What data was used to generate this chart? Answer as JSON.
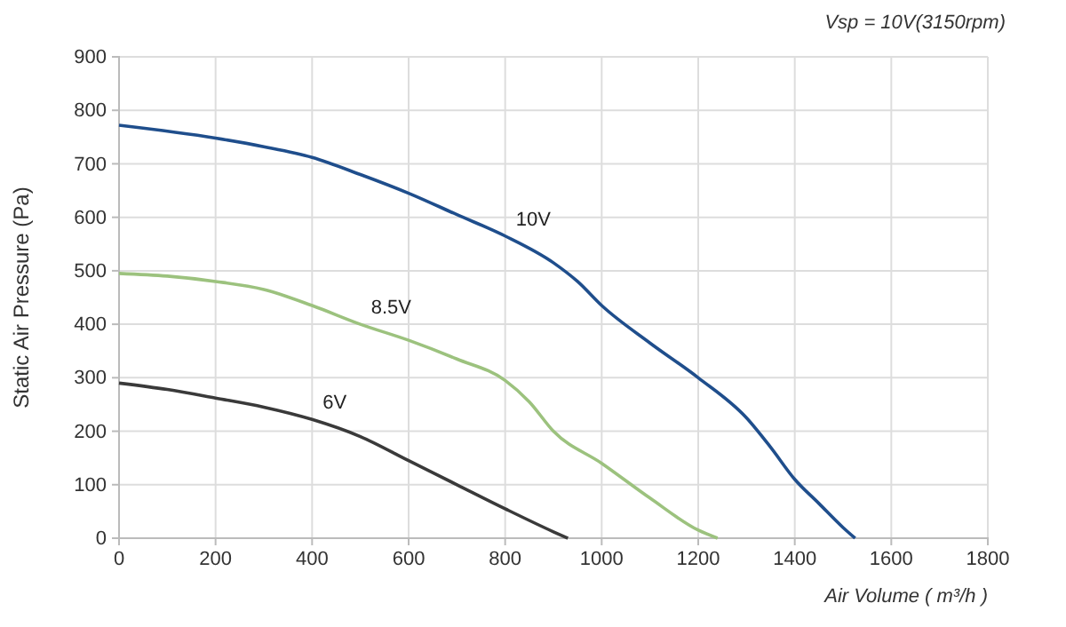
{
  "chart_data": {
    "type": "line",
    "xlabel": "Air Volume ( m³/h )",
    "ylabel": "Static Air Pressure  (Pa)",
    "annotations": [
      "Vsp = 10V(3150rpm)"
    ],
    "xlim": [
      0,
      1800
    ],
    "xticks": [
      0,
      200,
      400,
      600,
      800,
      1000,
      1200,
      1400,
      1600,
      1800
    ],
    "ylim": [
      0,
      900
    ],
    "yticks": [
      0,
      100,
      200,
      300,
      400,
      500,
      600,
      700,
      800,
      900
    ],
    "grid": true,
    "legend": false,
    "marker": "none",
    "line_style": "solid",
    "series": [
      {
        "name": "10V",
        "color": "#1f4e8c",
        "x": [
          0,
          200,
          300,
          400,
          500,
          600,
          700,
          800,
          900,
          950,
          1000,
          1100,
          1200,
          1300,
          1350,
          1400,
          1450,
          1500,
          1525
        ],
        "values": [
          772,
          748,
          732,
          712,
          680,
          645,
          605,
          565,
          515,
          480,
          435,
          365,
          300,
          225,
          170,
          110,
          65,
          20,
          0
        ]
      },
      {
        "name": "8.5V",
        "color": "#9cc27e",
        "x": [
          0,
          100,
          200,
          300,
          400,
          500,
          600,
          700,
          800,
          850,
          900,
          1000,
          1100,
          1200,
          1240
        ],
        "values": [
          495,
          490,
          480,
          465,
          435,
          400,
          370,
          335,
          295,
          255,
          200,
          140,
          75,
          15,
          0
        ]
      },
      {
        "name": "6V",
        "color": "#3a3a3a",
        "x": [
          0,
          100,
          200,
          300,
          400,
          500,
          600,
          700,
          800,
          900,
          930
        ],
        "values": [
          290,
          278,
          262,
          245,
          222,
          190,
          145,
          100,
          55,
          12,
          0
        ]
      }
    ]
  }
}
